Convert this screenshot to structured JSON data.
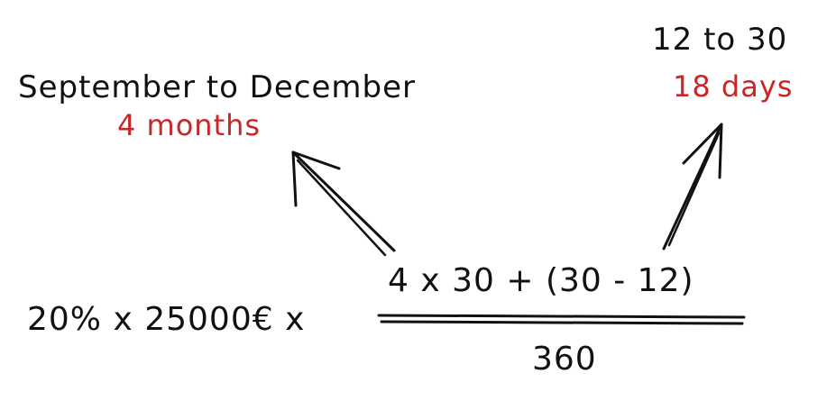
{
  "colors": {
    "text": "#111111",
    "accent": "#c62828"
  },
  "left_annotation": {
    "caption": "September to December",
    "value": "4 months"
  },
  "right_annotation": {
    "caption": "12 to 30",
    "value": "18 days"
  },
  "equation": {
    "left": "20% x 25000€ x",
    "numerator": "4 x 30 + (30 - 12)",
    "denominator": "360"
  }
}
